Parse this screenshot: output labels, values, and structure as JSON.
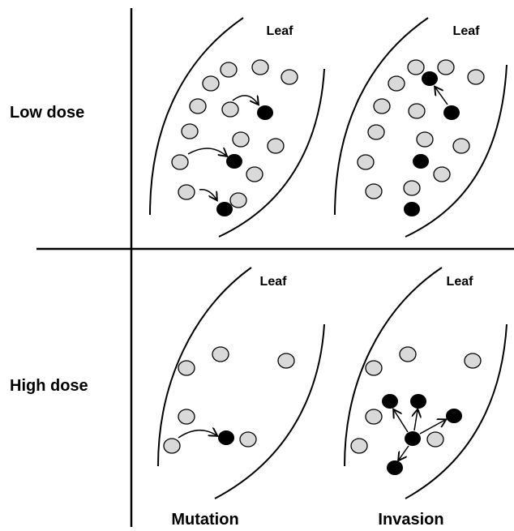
{
  "rows": [
    "Low dose",
    "High dose"
  ],
  "columns": [
    "Mutation",
    "Invasion"
  ],
  "panels": [
    {
      "label": "Leaf"
    },
    {
      "label": "Leaf"
    },
    {
      "label": "Leaf"
    },
    {
      "label": "Leaf"
    }
  ]
}
